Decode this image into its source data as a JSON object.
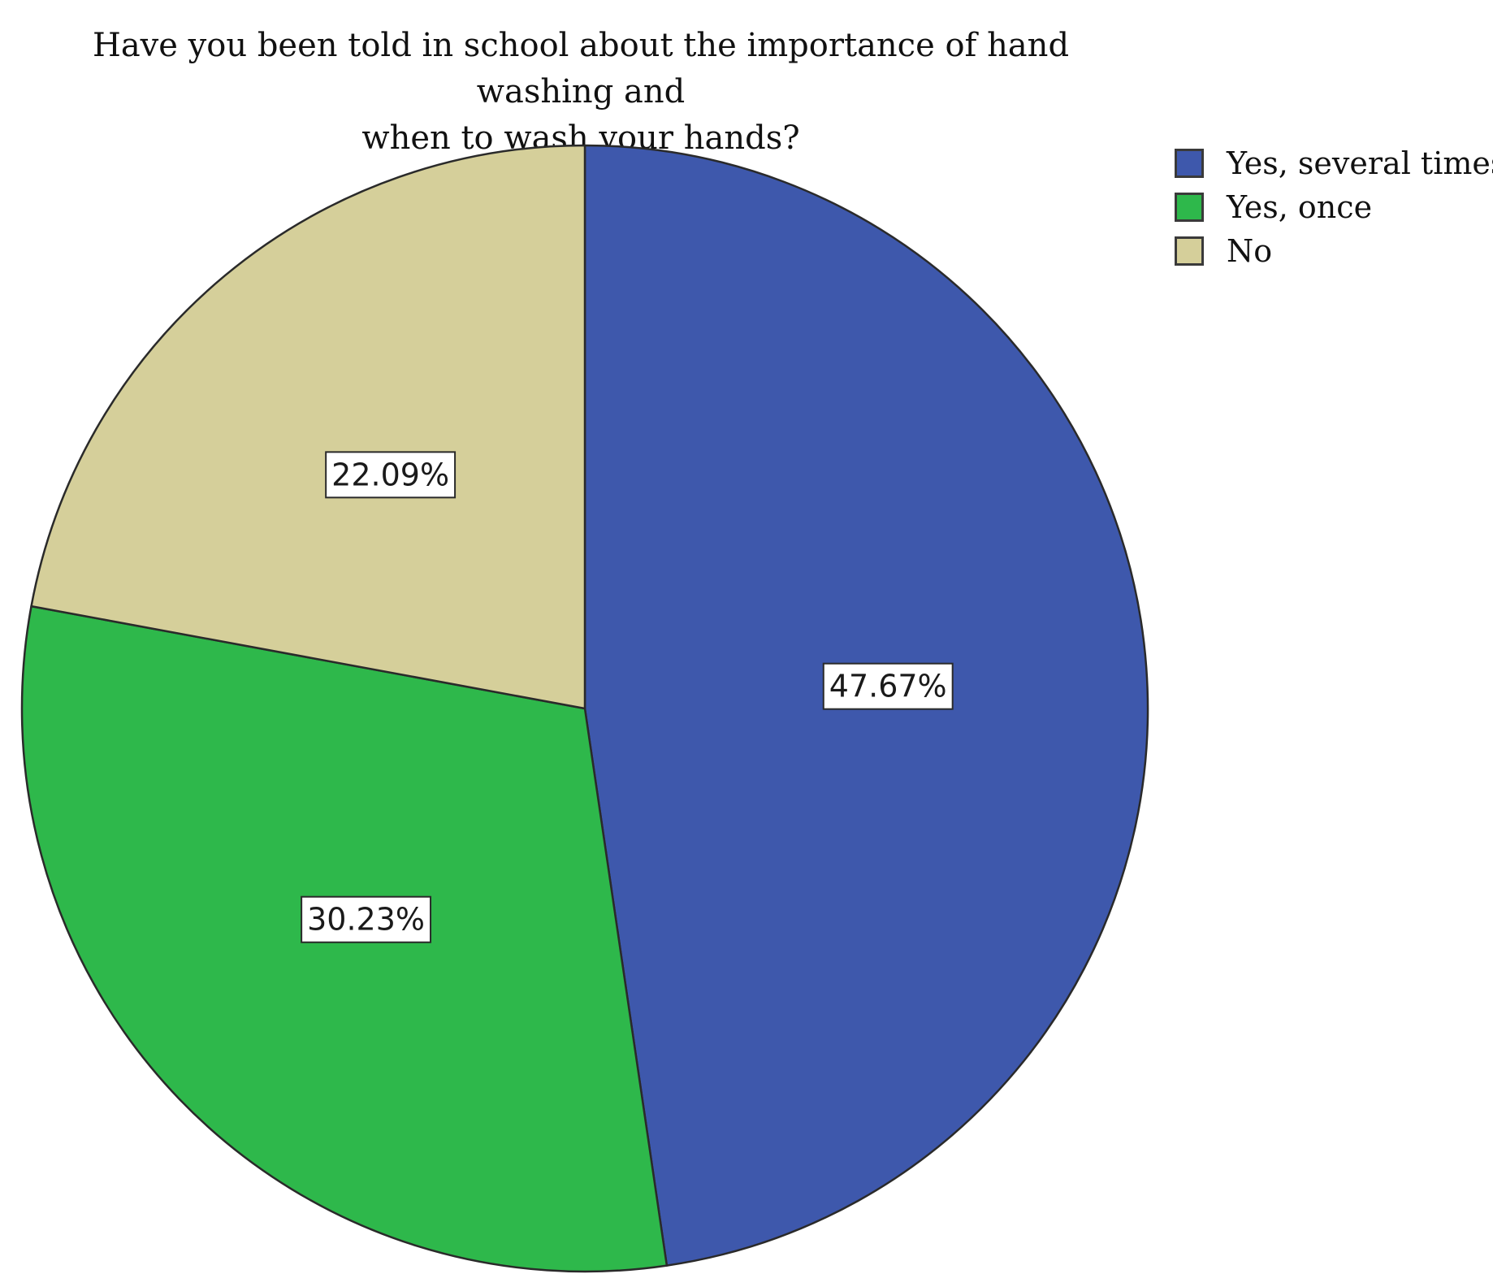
{
  "chart_data": {
    "type": "pie",
    "title": "Have you been told in school about the importance of hand washing and when to wash your hands?",
    "title_lines": [
      "Have you been told in school about the importance of hand washing and",
      "when to wash your hands?"
    ],
    "categories": [
      "Yes, several times",
      "Yes, once",
      "No"
    ],
    "values": [
      47.67,
      30.23,
      22.09
    ],
    "labels": [
      "47.67%",
      "30.23%",
      "22.09%"
    ],
    "colors": [
      "#3e58ac",
      "#2eb84b",
      "#d5cf9a"
    ],
    "start": "12 o'clock",
    "direction": "clockwise",
    "legend_position": "top-right"
  }
}
